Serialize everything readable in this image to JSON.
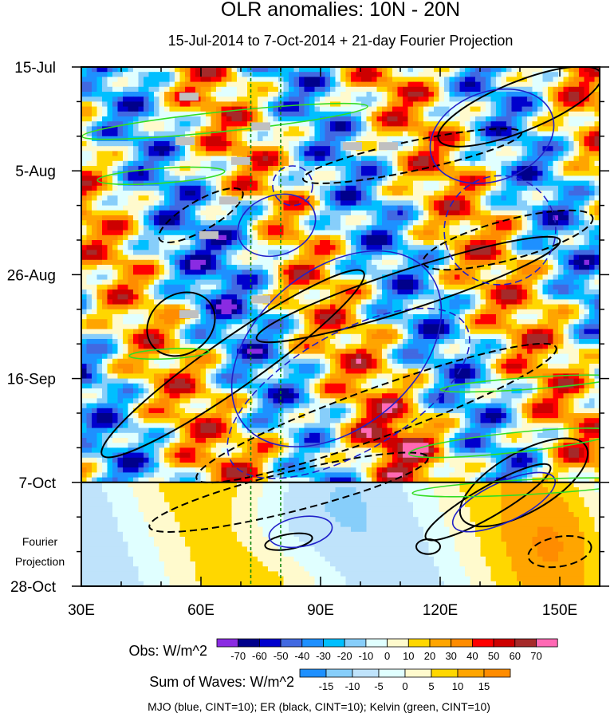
{
  "chart_data": {
    "type": "heatmap",
    "title": "OLR anomalies: 10N - 20N",
    "subtitle": "15-Jul-2014 to 7-Oct-2014 + 21-day Fourier Projection",
    "x_axis": {
      "range": [
        30,
        160
      ],
      "tick_values": [
        30,
        60,
        90,
        120,
        150
      ],
      "tick_labels": [
        "30E",
        "60E",
        "90E",
        "120E",
        "150E"
      ]
    },
    "y_axis": {
      "range_days": [
        0,
        105
      ],
      "tick_days": [
        0,
        21,
        42,
        63,
        84,
        105
      ],
      "tick_labels": [
        "15-Jul",
        "5-Aug",
        "26-Aug",
        "16-Sep",
        "7-Oct",
        "28-Oct"
      ],
      "projection_start_day": 84,
      "projection_label": [
        "Fourier",
        "Projection"
      ]
    },
    "reference_lines_lon": [
      72.5,
      80
    ],
    "missing_data_blocks": [
      {
        "lon": 57,
        "day": 6
      },
      {
        "lon": 56,
        "day": 15
      },
      {
        "lon": 75,
        "day": 12
      },
      {
        "lon": 70,
        "day": 19
      },
      {
        "lon": 98,
        "day": 16
      },
      {
        "lon": 107,
        "day": 16
      },
      {
        "lon": 67,
        "day": 27
      },
      {
        "lon": 62,
        "day": 34
      },
      {
        "lon": 75,
        "day": 47
      },
      {
        "lon": 57,
        "day": 50
      }
    ],
    "obs_colorbar": {
      "label": "Obs: W/m^2",
      "levels": [
        -70,
        -60,
        -50,
        -40,
        -30,
        -20,
        -10,
        0,
        10,
        20,
        30,
        40,
        50,
        60,
        70
      ],
      "colors": [
        "#8a2be2",
        "#00008b",
        "#0000cd",
        "#4169e1",
        "#1e90ff",
        "#00bfff",
        "#87cefa",
        "#e0ffff",
        "#fffacd",
        "#ffd700",
        "#ffa500",
        "#ff8c00",
        "#ff0000",
        "#cd0000",
        "#a52a2a",
        "#ff69b4"
      ]
    },
    "waves_colorbar": {
      "label": "Sum of Waves: W/m^2",
      "levels": [
        -15,
        -10,
        -5,
        0,
        5,
        10,
        15
      ],
      "colors": [
        "#1e90ff",
        "#87cefa",
        "#bfe3fb",
        "#e0ffff",
        "#fffacd",
        "#ffd700",
        "#ffa500",
        "#ff8c00"
      ]
    },
    "contour_legend": "MJO (blue, CINT=10); ER (black, CINT=10); Kelvin (green, CINT=10)",
    "wave_series": [
      {
        "name": "MJO",
        "color": "#2020c8",
        "cint": 10
      },
      {
        "name": "ER",
        "color": "#000000",
        "cint": 10
      },
      {
        "name": "Kelvin",
        "color": "#33dd22",
        "cint": 10
      }
    ]
  }
}
